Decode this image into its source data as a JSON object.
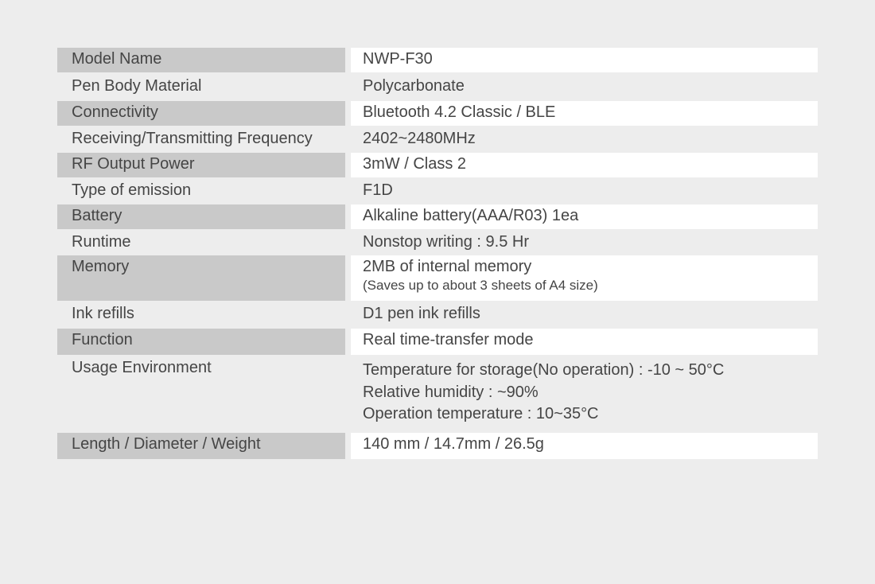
{
  "specs": [
    {
      "label": "Model Name",
      "value": [
        "NWP-F30"
      ],
      "shaded": true
    },
    {
      "label": "Pen Body Material",
      "value": [
        "Polycarbonate"
      ],
      "shaded": false
    },
    {
      "label": "Connectivity",
      "value": [
        "Bluetooth 4.2 Classic / BLE"
      ],
      "shaded": true
    },
    {
      "label": "Receiving/Transmitting Frequency",
      "value": [
        "2402~2480MHz"
      ],
      "shaded": false
    },
    {
      "label": "RF Output Power",
      "value": [
        "3mW / Class 2"
      ],
      "shaded": true
    },
    {
      "label": "Type of emission",
      "value": [
        "F1D"
      ],
      "shaded": false
    },
    {
      "label": "Battery",
      "value": [
        "Alkaline battery(AAA/R03) 1ea"
      ],
      "shaded": true
    },
    {
      "label": "Runtime",
      "value": [
        "Nonstop writing : 9.5 Hr"
      ],
      "shaded": false
    },
    {
      "label": "Memory",
      "value": [
        "2MB of internal memory"
      ],
      "note": "(Saves up to  about 3 sheets of A4 size)",
      "shaded": true
    },
    {
      "label": "Ink refills",
      "value": [
        "D1 pen ink refills"
      ],
      "shaded": false
    },
    {
      "label": "Function",
      "value": [
        "Real time-transfer mode"
      ],
      "shaded": true
    },
    {
      "label": "Usage Environment",
      "value": [
        "Temperature for storage(No operation) : -10 ~ 50°C",
        "Relative humidity : ~90%",
        "Operation temperature : 10~35°C"
      ],
      "shaded": false
    },
    {
      "label": "Length / Diameter / Weight",
      "value": [
        "140 mm / 14.7mm / 26.5g"
      ],
      "shaded": true
    }
  ]
}
